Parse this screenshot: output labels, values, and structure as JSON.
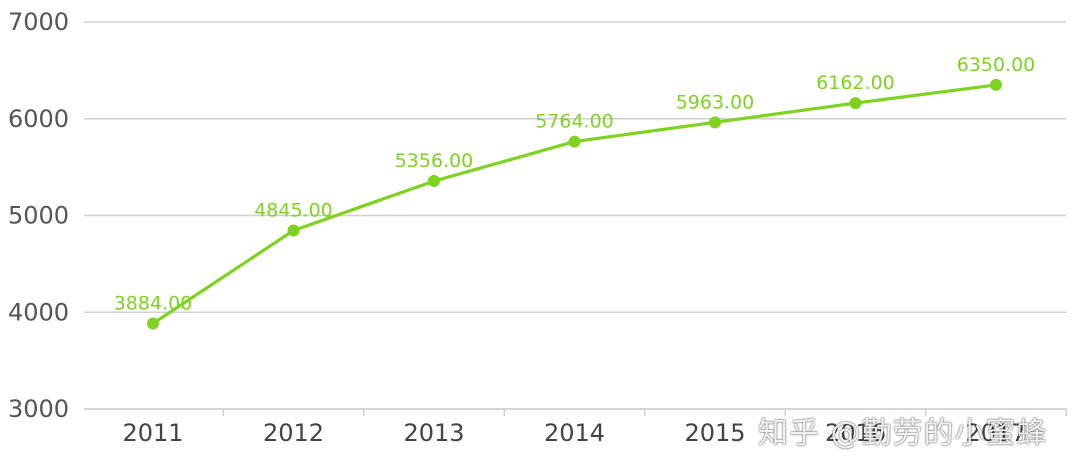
{
  "chart_data": {
    "type": "line",
    "title": "",
    "xlabel": "",
    "ylabel": "",
    "categories": [
      "2011",
      "2012",
      "2013",
      "2014",
      "2015",
      "2016",
      "2017"
    ],
    "values": [
      3884.0,
      4845.0,
      5356.0,
      5764.0,
      5963.0,
      6162.0,
      6350.0
    ],
    "data_labels": [
      "3884.00",
      "4845.00",
      "5356.00",
      "5764.00",
      "5963.00",
      "6162.00",
      "6350.00"
    ],
    "ylim": [
      3000,
      7000
    ],
    "yticks": [
      3000,
      4000,
      5000,
      6000,
      7000
    ],
    "ytick_labels": [
      "3000",
      "4000",
      "5000",
      "6000",
      "7000"
    ],
    "xtick_labels": [
      "2011",
      "2012",
      "2013",
      "2014",
      "2015",
      "2016",
      "2017"
    ],
    "grid": true,
    "legend": "none",
    "series_color": "#7ed321",
    "label_color": "#7ed321"
  },
  "watermark": {
    "text": "知乎 @勤劳的小蜜蜂"
  }
}
